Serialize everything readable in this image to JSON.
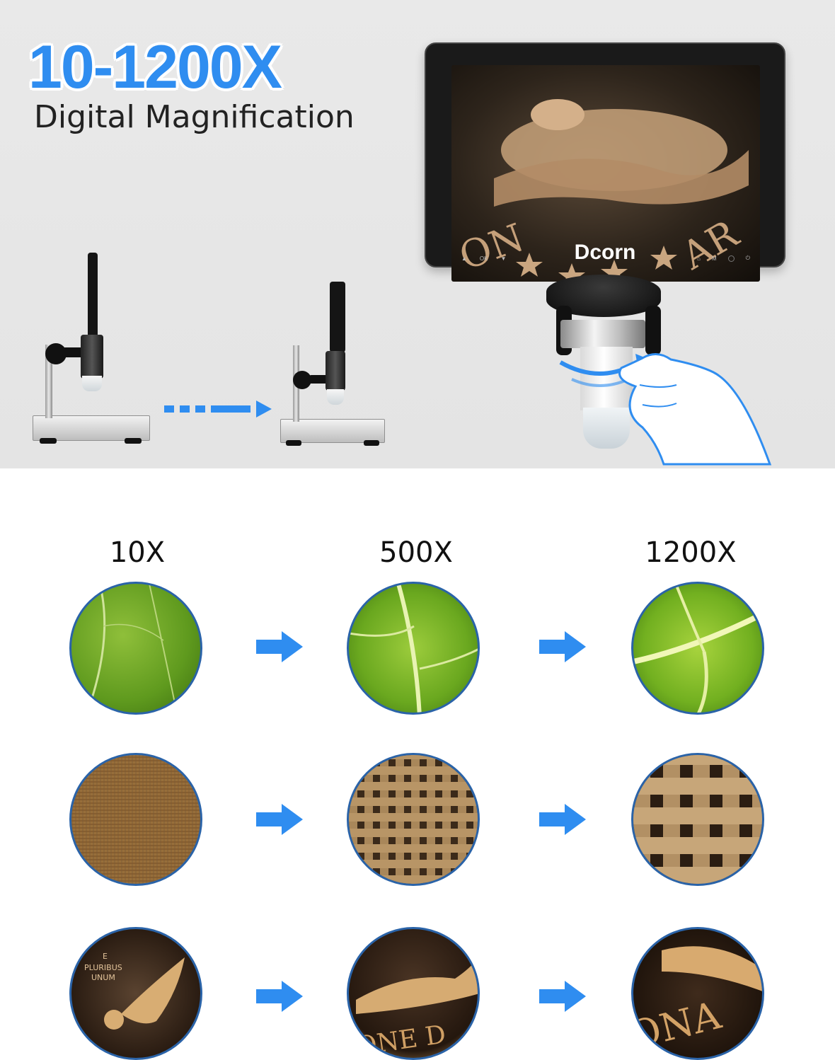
{
  "banner": {
    "headline": "10-1200X",
    "subheadline": "Digital Magnification"
  },
  "device": {
    "brand": "Dcorn",
    "buttons_left": [
      "▲",
      "OK",
      "▼"
    ],
    "buttons_right": [
      "⌂",
      "M"
    ]
  },
  "colors": {
    "accent": "#2f8df0",
    "circle_border": "#2a63a8"
  },
  "grid": {
    "columns": [
      "10X",
      "500X",
      "1200X"
    ],
    "rows": [
      {
        "subject": "leaf",
        "icons": [
          "leaf-10x-image",
          "leaf-500x-image",
          "leaf-1200x-image"
        ]
      },
      {
        "subject": "burlap",
        "icons": [
          "burlap-10x-image",
          "burlap-500x-image",
          "burlap-1200x-image"
        ]
      },
      {
        "subject": "coin",
        "icons": [
          "coin-10x-image",
          "coin-500x-image",
          "coin-1200x-image"
        ]
      }
    ]
  }
}
